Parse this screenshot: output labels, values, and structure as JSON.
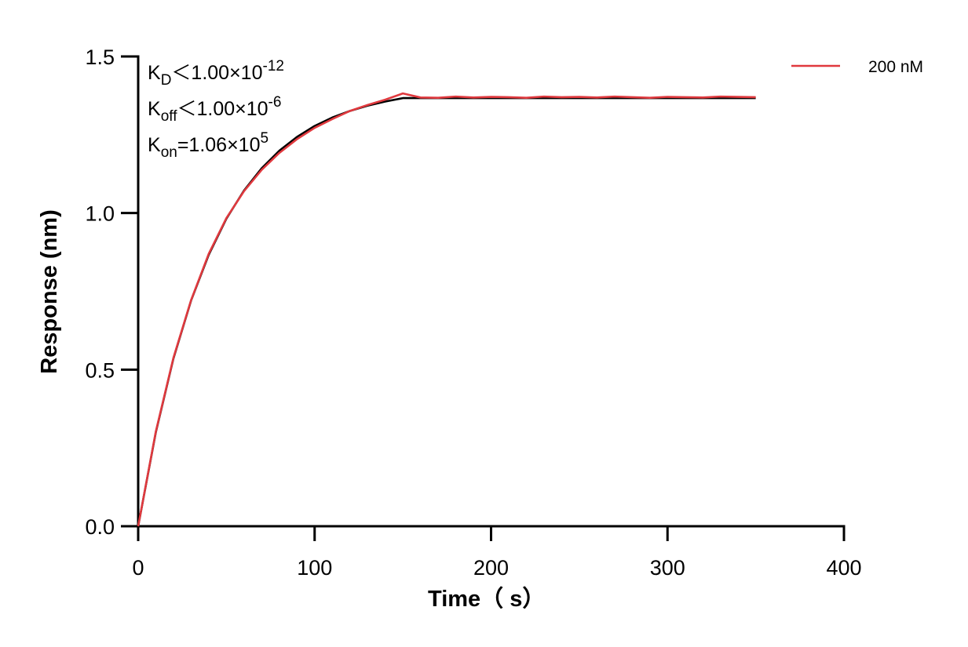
{
  "chart_data": {
    "type": "line",
    "xlabel": "Time（ s）",
    "ylabel": "Response (nm)",
    "xlim": [
      0,
      400
    ],
    "xticks": [
      0,
      100,
      200,
      300,
      400
    ],
    "ylim": [
      0,
      1.5
    ],
    "yticks": [
      {
        "value": 0,
        "label": "0.0"
      },
      0.5,
      {
        "value": 1,
        "label": "1.0"
      },
      1.5
    ],
    "annotations": [
      {
        "main": "K",
        "sub": "D",
        "rest": "＜1.00×10",
        "sup": "-12"
      },
      {
        "main": "K",
        "sub": "off",
        "rest": "＜1.00×10",
        "sup": "-6"
      },
      {
        "main": "K",
        "sub": "on",
        "rest": "=1.06×10",
        "sup": "5"
      }
    ],
    "legend": "upper right",
    "x": [
      0,
      10,
      20,
      30,
      40,
      50,
      60,
      70,
      80,
      90,
      100,
      110,
      120,
      130,
      140,
      150,
      160,
      170,
      180,
      190,
      200,
      210,
      220,
      230,
      240,
      250,
      260,
      270,
      280,
      290,
      300,
      310,
      320,
      330,
      340,
      350
    ],
    "series": [
      {
        "name": "200 nM",
        "color": "#e0393e",
        "values": [
          0,
          0.302,
          0.538,
          0.722,
          0.87,
          0.984,
          1.07,
          1.138,
          1.192,
          1.236,
          1.272,
          1.3,
          1.326,
          1.345,
          1.362,
          1.382,
          1.369,
          1.368,
          1.372,
          1.369,
          1.371,
          1.37,
          1.368,
          1.372,
          1.37,
          1.371,
          1.369,
          1.372,
          1.37,
          1.368,
          1.371,
          1.37,
          1.369,
          1.372,
          1.371,
          1.37
        ]
      },
      {
        "color": "#000000",
        "values": [
          0,
          0.3,
          0.536,
          0.721,
          0.867,
          0.982,
          1.072,
          1.143,
          1.199,
          1.243,
          1.278,
          1.305,
          1.326,
          1.343,
          1.356,
          1.367,
          1.367,
          1.367,
          1.367,
          1.367,
          1.367,
          1.367,
          1.367,
          1.367,
          1.367,
          1.367,
          1.367,
          1.367,
          1.367,
          1.367,
          1.367,
          1.367,
          1.367,
          1.367,
          1.367,
          1.367
        ]
      }
    ]
  }
}
